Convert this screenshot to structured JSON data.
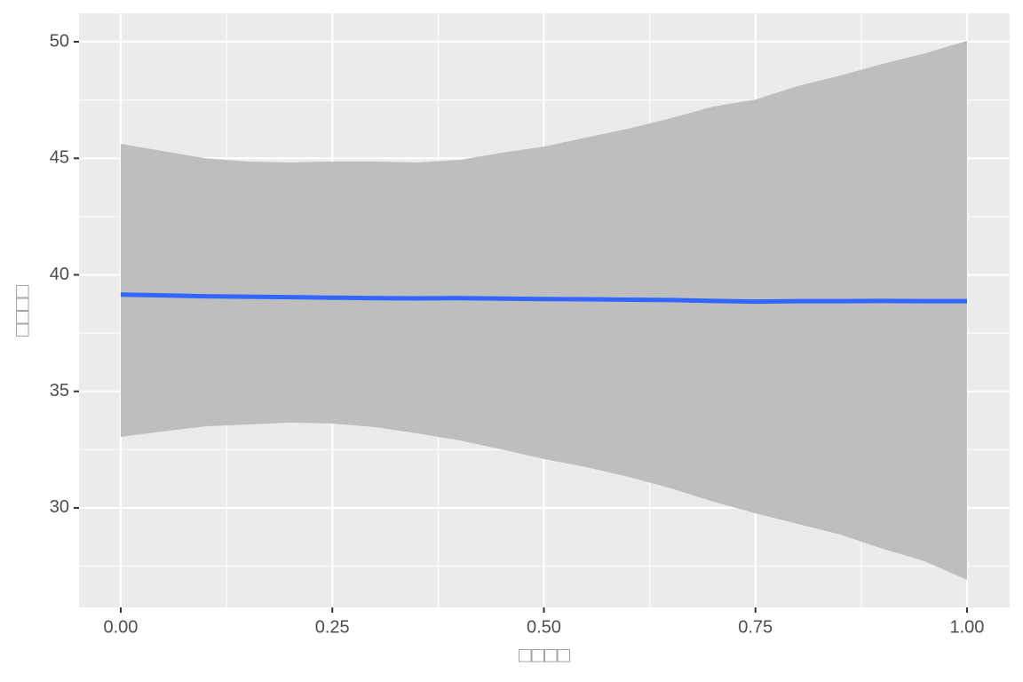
{
  "chart_data": {
    "type": "smooth",
    "x_label": "□□□□",
    "y_label": "□□□□",
    "x": [
      0,
      0.05,
      0.1,
      0.15,
      0.2,
      0.25,
      0.3,
      0.35,
      0.4,
      0.45,
      0.5,
      0.55,
      0.6,
      0.65,
      0.7,
      0.75,
      0.8,
      0.85,
      0.9,
      0.95,
      1.0
    ],
    "series": [
      {
        "color": "#3366ff",
        "band_color": "#bebebe",
        "values": [
          39.15,
          39.12,
          39.08,
          39.06,
          39.04,
          39.02,
          39.0,
          38.99,
          39.0,
          38.98,
          38.96,
          38.95,
          38.93,
          38.92,
          38.88,
          38.85,
          38.87,
          38.87,
          38.88,
          38.87,
          38.87
        ],
        "upper": [
          45.62,
          45.31,
          45.0,
          44.86,
          44.82,
          44.86,
          44.86,
          44.82,
          44.93,
          45.24,
          45.5,
          45.89,
          46.27,
          46.72,
          47.22,
          47.52,
          48.1,
          48.55,
          49.05,
          49.5,
          50.04
        ],
        "lower": [
          33.05,
          33.28,
          33.5,
          33.58,
          33.66,
          33.62,
          33.47,
          33.2,
          32.9,
          32.51,
          32.1,
          31.75,
          31.33,
          30.84,
          30.27,
          29.77,
          29.31,
          28.86,
          28.25,
          27.71,
          26.91
        ]
      }
    ],
    "xlim": [
      -0.0493,
      1.0504
    ],
    "ylim": [
      25.73,
      51.22
    ],
    "xticks": [
      {
        "value": 0,
        "label": "0.00"
      },
      {
        "value": 0.25,
        "label": "0.25"
      },
      {
        "value": 0.5,
        "label": "0.50"
      },
      {
        "value": 0.75,
        "label": "0.75"
      },
      {
        "value": 1,
        "label": "1.00"
      }
    ],
    "yticks": [
      30,
      35,
      40,
      45,
      50
    ],
    "x_minor_breaks": [
      0.125,
      0.375,
      0.625,
      0.875
    ],
    "y_minor_breaks": [
      27.5,
      32.5,
      37.5,
      42.5,
      47.5
    ],
    "grid": true
  }
}
